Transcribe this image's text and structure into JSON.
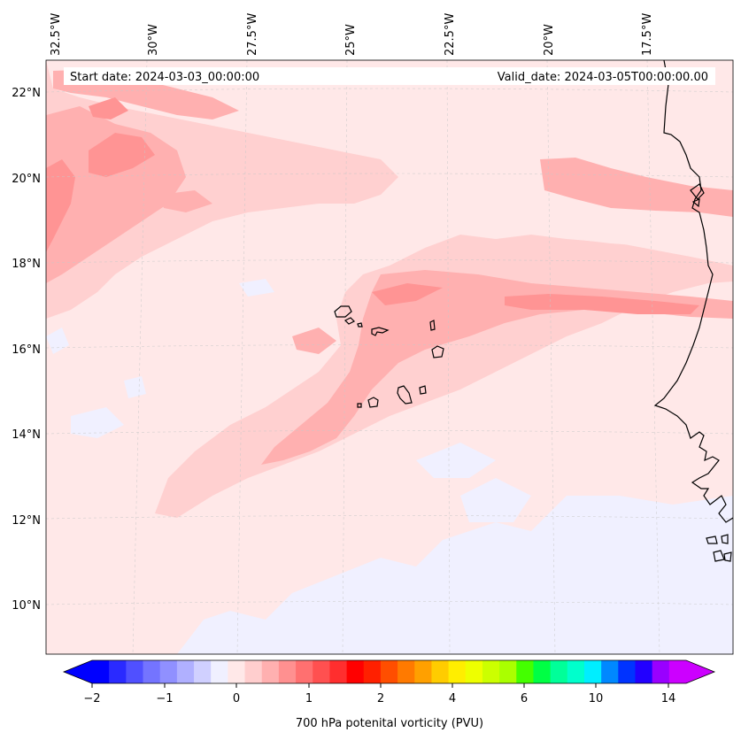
{
  "map": {
    "start_date": "Start date: 2024-03-03_00:00:00",
    "valid_date": "Valid_date: 2024-03-05T00:00:00.00",
    "lon_labels": [
      "32.5°W",
      "30°W",
      "27.5°W",
      "25°W",
      "22.5°W",
      "20°W",
      "17.5°W"
    ],
    "lat_labels": [
      "22°N",
      "20°N",
      "18°N",
      "16°N",
      "14°N",
      "12°N",
      "10°N"
    ],
    "colorbar": {
      "title": "700 hPa potenital vorticity (PVU)",
      "ticks": [
        "−2",
        "−1",
        "0",
        "1",
        "2",
        "4",
        "6",
        "10",
        "14"
      ],
      "colors": [
        "#0000ff",
        "#2a2aff",
        "#5050ff",
        "#7474ff",
        "#9090ff",
        "#b0b0ff",
        "#d0d0ff",
        "#f0f0ff",
        "#ffe8e8",
        "#ffcece",
        "#ffb0b0",
        "#ff9090",
        "#ff7070",
        "#ff5050",
        "#ff2e2e",
        "#ff0000",
        "#ff2000",
        "#ff4e00",
        "#ff7a00",
        "#ffa000",
        "#ffcc00",
        "#ffee00",
        "#eeff00",
        "#ccff00",
        "#aaff00",
        "#44ff00",
        "#00ff44",
        "#00ff99",
        "#00ffcc",
        "#00eeff",
        "#0088ff",
        "#0033ff",
        "#2200ff",
        "#9900ff",
        "#cc00ff"
      ],
      "under_color": "#0000ff",
      "over_color": "#cc00ff"
    },
    "field_colors": {
      "background": "#ffe8e8",
      "light_blue": "#f0f0ff",
      "level1": "#ffd0d0",
      "level2": "#ffb0b0",
      "level3": "#ff9494",
      "coast": "#000000"
    }
  }
}
